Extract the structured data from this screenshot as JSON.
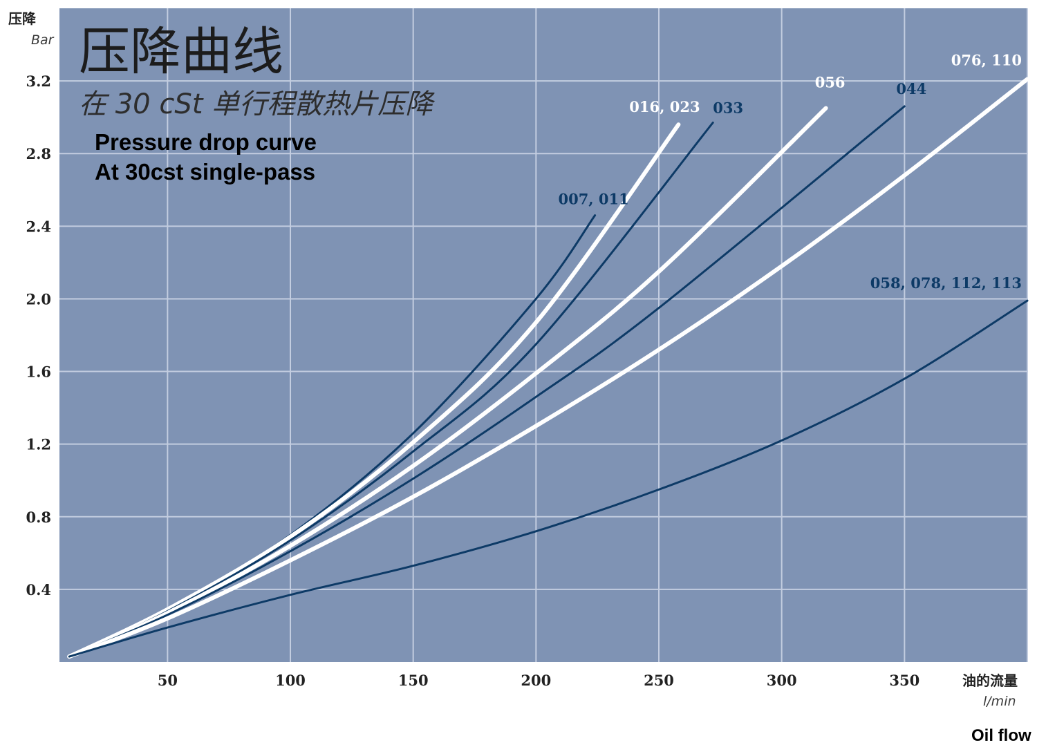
{
  "chart_data": {
    "type": "line",
    "title": "压降曲线",
    "subtitle": "在 30 cSt 单行程散热片压降",
    "title_en_line1": "Pressure drop curve",
    "title_en_line2": "At 30cst single-pass",
    "ylabel": "压降",
    "ylabel_unit": "Bar",
    "xlabel": "油的流量",
    "xlabel_unit": "l/min",
    "xlabel_en": "Oil flow",
    "xlim": [
      6,
      400
    ],
    "ylim": [
      0,
      3.6
    ],
    "x_ticks": [
      50,
      100,
      150,
      200,
      250,
      300,
      350
    ],
    "y_ticks": [
      0.4,
      0.8,
      1.2,
      1.6,
      2.0,
      2.4,
      2.8,
      3.2
    ],
    "y_tick_labels": [
      "0.4",
      "0.8",
      "1.2",
      "1.6",
      "2.0",
      "2.4",
      "2.8",
      "3.2"
    ],
    "grid": true,
    "colors": {
      "plot_background": "#7f93b4",
      "grid": "#c3cde0",
      "dark_series": "#0d3a66",
      "light_series": "#ffffff"
    },
    "series": [
      {
        "name": "007, 011",
        "color": "dark",
        "x": [
          10,
          50,
          100,
          150,
          200,
          224
        ],
        "y": [
          0.03,
          0.29,
          0.7,
          1.26,
          2.0,
          2.46
        ]
      },
      {
        "name": "016, 023",
        "color": "light",
        "x": [
          10,
          50,
          100,
          150,
          200,
          258
        ],
        "y": [
          0.03,
          0.29,
          0.69,
          1.21,
          1.87,
          2.96
        ]
      },
      {
        "name": "033",
        "color": "dark",
        "x": [
          10,
          50,
          100,
          150,
          200,
          272
        ],
        "y": [
          0.03,
          0.28,
          0.67,
          1.16,
          1.75,
          2.97
        ]
      },
      {
        "name": "056",
        "color": "light",
        "x": [
          10,
          50,
          100,
          150,
          200,
          250,
          318
        ],
        "y": [
          0.03,
          0.27,
          0.64,
          1.08,
          1.59,
          2.15,
          3.05
        ]
      },
      {
        "name": "044",
        "color": "dark",
        "x": [
          10,
          50,
          100,
          150,
          200,
          250,
          350
        ],
        "y": [
          0.03,
          0.26,
          0.61,
          1.01,
          1.46,
          1.95,
          3.06
        ]
      },
      {
        "name": "076, 110",
        "color": "light",
        "x": [
          10,
          50,
          100,
          150,
          200,
          250,
          300,
          350,
          400
        ],
        "y": [
          0.03,
          0.24,
          0.56,
          0.91,
          1.3,
          1.72,
          2.18,
          2.68,
          3.21
        ]
      },
      {
        "name": "058, 078, 112, 113",
        "color": "dark",
        "x": [
          10,
          50,
          100,
          150,
          200,
          250,
          300,
          350,
          400
        ],
        "y": [
          0.03,
          0.19,
          0.37,
          0.53,
          0.72,
          0.95,
          1.22,
          1.56,
          1.99
        ]
      }
    ]
  }
}
